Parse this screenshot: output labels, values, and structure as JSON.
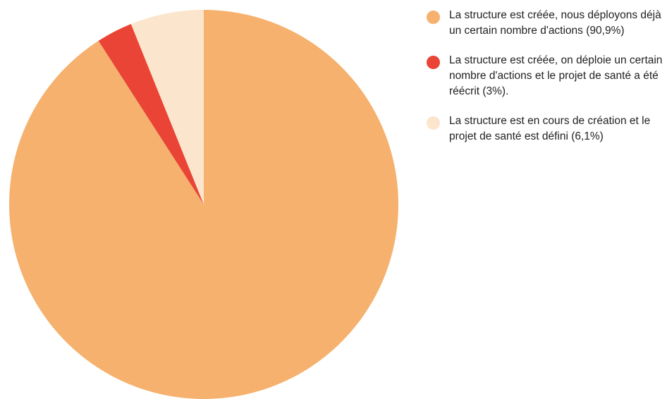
{
  "chart_data": {
    "type": "pie",
    "categories": [
      "La structure est créée, nous déployons déjà un certain nombre d'actions (90,9%)",
      "La structure est créée, on déploie un certain nombre d'actions et le projet de santé a été réécrit (3%).",
      "La structure est en cours de création et le projet de santé est défini (6,1%)"
    ],
    "values": [
      90.9,
      3,
      6.1
    ],
    "colors": [
      "#f5b16d",
      "#e94436",
      "#fce5cd"
    ],
    "legend": "right"
  }
}
